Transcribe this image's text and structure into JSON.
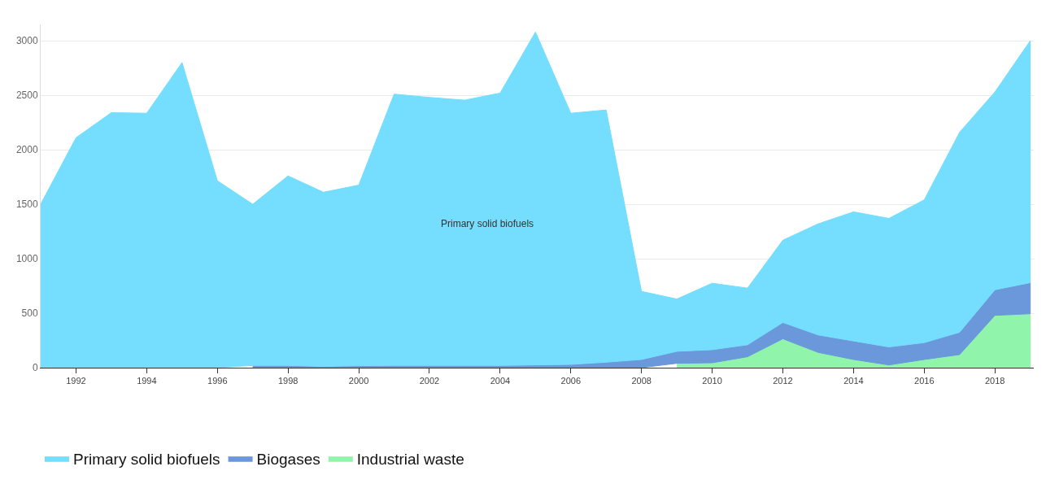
{
  "chart_data": {
    "type": "area",
    "stacked": true,
    "x": [
      1991,
      1992,
      1993,
      1994,
      1995,
      1996,
      1997,
      1998,
      1999,
      2000,
      2001,
      2002,
      2003,
      2004,
      2005,
      2006,
      2007,
      2008,
      2009,
      2010,
      2011,
      2012,
      2013,
      2014,
      2015,
      2016,
      2017,
      2018,
      2019
    ],
    "series": [
      {
        "name": "Industrial waste",
        "color": "#90f5aa",
        "values": [
          null,
          null,
          null,
          null,
          null,
          null,
          null,
          null,
          null,
          null,
          null,
          null,
          null,
          null,
          null,
          null,
          null,
          null,
          40,
          45,
          100,
          265,
          140,
          75,
          25,
          75,
          120,
          480,
          495
        ]
      },
      {
        "name": "Biogases",
        "color": "#6b98db",
        "values": [
          null,
          null,
          null,
          null,
          null,
          null,
          20,
          20,
          12,
          18,
          20,
          20,
          20,
          20,
          25,
          30,
          50,
          75,
          110,
          120,
          110,
          150,
          160,
          170,
          165,
          155,
          205,
          235,
          285
        ]
      },
      {
        "name": "Primary solid biofuels",
        "color": "#75ddfd",
        "values": [
          1500,
          2110,
          2340,
          2335,
          2800,
          1715,
          1480,
          1740,
          1598,
          1657,
          2490,
          2460,
          2435,
          2500,
          3055,
          2305,
          2315,
          625,
          480,
          610,
          520,
          755,
          1020,
          1185,
          1180,
          1310,
          1835,
          1815,
          2220
        ]
      }
    ],
    "xlim": [
      1991,
      2019.1
    ],
    "xticks": [
      1992,
      1994,
      1996,
      1998,
      2000,
      2002,
      2004,
      2006,
      2008,
      2010,
      2012,
      2014,
      2016,
      2018
    ],
    "ylim": [
      0,
      3150
    ],
    "yticks": [
      0,
      500,
      1000,
      1500,
      2000,
      2500,
      3000
    ],
    "grid": "y",
    "legend": "bottom left",
    "annotations": [
      "Primary solid biofuels"
    ]
  }
}
